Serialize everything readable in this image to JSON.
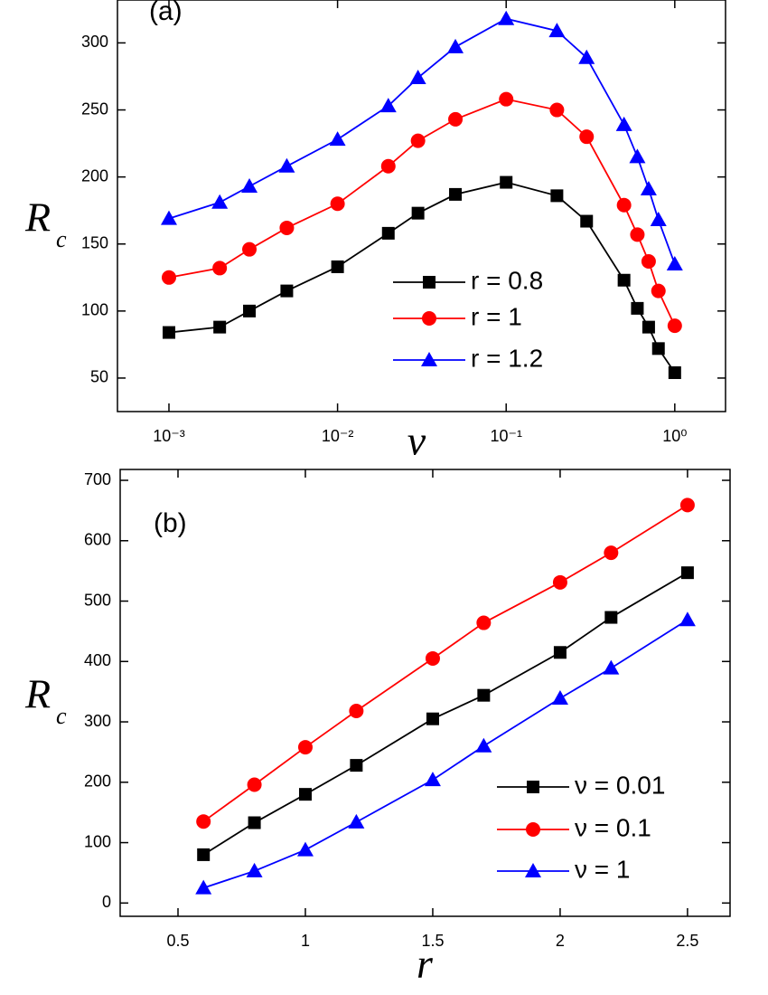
{
  "chart_data": [
    {
      "type": "line",
      "panel_label": "(a)",
      "xlabel": "ν",
      "ylabel": "R",
      "ylabel_sub": "c",
      "xscale": "log",
      "xlim": [
        0.000495,
        2
      ],
      "ylim": [
        25,
        332
      ],
      "xticks": [
        {
          "value": 0.001,
          "label": "10⁻³"
        },
        {
          "value": 0.01,
          "label": "10⁻²"
        },
        {
          "value": 0.1,
          "label": "10⁻¹"
        },
        {
          "value": 1,
          "label": "10⁰"
        }
      ],
      "yticks": [
        50,
        100,
        150,
        200,
        250,
        300
      ],
      "legend": "lower right",
      "x": [
        0.001,
        0.002,
        0.003,
        0.005,
        0.01,
        0.02,
        0.03,
        0.05,
        0.1,
        0.2,
        0.3,
        0.5,
        0.6,
        0.7,
        0.8,
        1.0
      ],
      "series": [
        {
          "name": "r = 0.8",
          "color": "#000000",
          "marker": "square",
          "values": [
            84,
            88,
            100,
            115,
            133,
            158,
            173,
            187,
            196,
            186,
            167,
            123,
            102,
            88,
            72,
            54
          ]
        },
        {
          "name": "r = 1",
          "color": "#ff0000",
          "marker": "circle",
          "values": [
            125,
            132,
            146,
            162,
            180,
            208,
            227,
            243,
            258,
            250,
            230,
            179,
            157,
            137,
            115,
            89
          ]
        },
        {
          "name": "r = 1.2",
          "color": "#0000ff",
          "marker": "triangle",
          "values": [
            169,
            181,
            193,
            208,
            228,
            253,
            274,
            297,
            318,
            309,
            289,
            239,
            215,
            191,
            168,
            135
          ]
        }
      ]
    },
    {
      "type": "line",
      "panel_label": "(b)",
      "xlabel": "r",
      "ylabel": "R",
      "ylabel_sub": "c",
      "xscale": "linear",
      "xlim": [
        0.273,
        2.667
      ],
      "ylim": [
        -22,
        718
      ],
      "xticks": [
        0.5,
        1.0,
        1.5,
        2.0,
        2.5
      ],
      "yticks": [
        0,
        100,
        200,
        300,
        400,
        500,
        600,
        700
      ],
      "legend": "lower right",
      "x": [
        0.6,
        0.8,
        1.0,
        1.2,
        1.5,
        1.7,
        2.0,
        2.2,
        2.5
      ],
      "series": [
        {
          "name": "ν = 0.01",
          "color": "#000000",
          "marker": "square",
          "values": [
            80,
            133,
            180,
            228,
            305,
            344,
            415,
            473,
            547
          ]
        },
        {
          "name": "ν = 0.1",
          "color": "#ff0000",
          "marker": "circle",
          "values": [
            135,
            196,
            258,
            318,
            405,
            464,
            531,
            580,
            659
          ]
        },
        {
          "name": "ν = 1",
          "color": "#0000ff",
          "marker": "triangle",
          "values": [
            25,
            53,
            88,
            134,
            204,
            260,
            339,
            389,
            469
          ]
        }
      ]
    }
  ]
}
